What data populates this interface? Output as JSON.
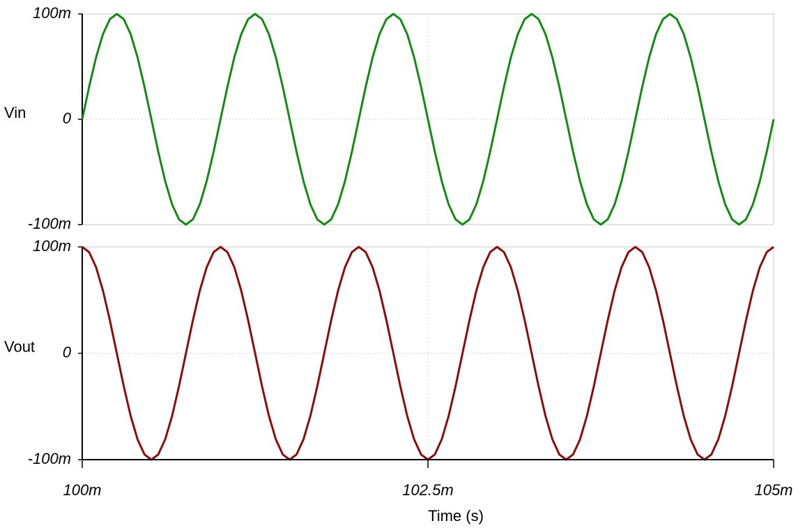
{
  "chart_data": {
    "type": "line",
    "xlabel": "Time (s)",
    "grid": true,
    "xlim": [
      0.1,
      0.105
    ],
    "xticks": [
      {
        "value": 0.1,
        "label": "100m"
      },
      {
        "value": 0.1025,
        "label": "102.5m"
      },
      {
        "value": 0.105,
        "label": "105m"
      }
    ],
    "x": [
      0.1,
      0.10005,
      0.1001,
      0.10015,
      0.1002,
      0.10025,
      0.1003,
      0.10035,
      0.1004,
      0.10045,
      0.1005,
      0.10055,
      0.1006,
      0.10065,
      0.1007,
      0.10075,
      0.1008,
      0.10085,
      0.1009,
      0.10095,
      0.101,
      0.10105,
      0.1011,
      0.10115,
      0.1012,
      0.10125,
      0.1013,
      0.10135,
      0.1014,
      0.10145,
      0.1015,
      0.10155,
      0.1016,
      0.10165,
      0.1017,
      0.10175,
      0.1018,
      0.10185,
      0.1019,
      0.10195,
      0.102,
      0.10205,
      0.1021,
      0.10215,
      0.1022,
      0.10225,
      0.1023,
      0.10235,
      0.1024,
      0.10245,
      0.1025,
      0.10255,
      0.1026,
      0.10265,
      0.1027,
      0.10275,
      0.1028,
      0.10285,
      0.1029,
      0.10295,
      0.103,
      0.10305,
      0.1031,
      0.10315,
      0.1032,
      0.10325,
      0.1033,
      0.10335,
      0.1034,
      0.10345,
      0.1035,
      0.10355,
      0.1036,
      0.10365,
      0.1037,
      0.10375,
      0.1038,
      0.10385,
      0.1039,
      0.10395,
      0.104,
      0.10405,
      0.1041,
      0.10415,
      0.1042,
      0.10425,
      0.1043,
      0.10435,
      0.1044,
      0.10445,
      0.1045,
      0.10455,
      0.1046,
      0.10465,
      0.1047,
      0.10475,
      0.1048,
      0.10485,
      0.1049,
      0.10495,
      0.105
    ],
    "panels": [
      {
        "ylabel": "Vin",
        "ylim": [
          -0.1,
          0.1
        ],
        "yticks": [
          {
            "value": 0.1,
            "label": "100m"
          },
          0,
          {
            "value": -0.1,
            "label": "-100m"
          }
        ],
        "series": [
          {
            "color": "#138a13",
            "values": [
              0,
              0.0309,
              0.0588,
              0.0809,
              0.0951,
              0.1,
              0.0951,
              0.0809,
              0.0588,
              0.0309,
              0,
              -0.0309,
              -0.0588,
              -0.0809,
              -0.0951,
              -0.1,
              -0.0951,
              -0.0809,
              -0.0588,
              -0.0309,
              0,
              0.0309,
              0.0588,
              0.0809,
              0.0951,
              0.1,
              0.0951,
              0.0809,
              0.0588,
              0.0309,
              0,
              -0.0309,
              -0.0588,
              -0.0809,
              -0.0951,
              -0.1,
              -0.0951,
              -0.0809,
              -0.0588,
              -0.0309,
              0,
              0.0309,
              0.0588,
              0.0809,
              0.0951,
              0.1,
              0.0951,
              0.0809,
              0.0588,
              0.0309,
              0,
              -0.0309,
              -0.0588,
              -0.0809,
              -0.0951,
              -0.1,
              -0.0951,
              -0.0809,
              -0.0588,
              -0.0309,
              0,
              0.0309,
              0.0588,
              0.0809,
              0.0951,
              0.1,
              0.0951,
              0.0809,
              0.0588,
              0.0309,
              0,
              -0.0309,
              -0.0588,
              -0.0809,
              -0.0951,
              -0.1,
              -0.0951,
              -0.0809,
              -0.0588,
              -0.0309,
              0,
              0.0309,
              0.0588,
              0.0809,
              0.0951,
              0.1,
              0.0951,
              0.0809,
              0.0588,
              0.0309,
              0,
              -0.0309,
              -0.0588,
              -0.0809,
              -0.0951,
              -0.1,
              -0.0951,
              -0.0809,
              -0.0588,
              -0.0309,
              0
            ]
          }
        ]
      },
      {
        "ylabel": "Vout",
        "ylim": [
          -0.1,
          0.1
        ],
        "yticks": [
          {
            "value": 0.1,
            "label": "100m"
          },
          0,
          {
            "value": -0.1,
            "label": "-100m"
          }
        ],
        "series": [
          {
            "color": "#8b0c0c",
            "values": [
              0.1,
              0.0951,
              0.0809,
              0.0588,
              0.0309,
              0,
              -0.0309,
              -0.0588,
              -0.0809,
              -0.0951,
              -0.1,
              -0.0951,
              -0.0809,
              -0.0588,
              -0.0309,
              0,
              0.0309,
              0.0588,
              0.0809,
              0.0951,
              0.1,
              0.0951,
              0.0809,
              0.0588,
              0.0309,
              0,
              -0.0309,
              -0.0588,
              -0.0809,
              -0.0951,
              -0.1,
              -0.0951,
              -0.0809,
              -0.0588,
              -0.0309,
              0,
              0.0309,
              0.0588,
              0.0809,
              0.0951,
              0.1,
              0.0951,
              0.0809,
              0.0588,
              0.0309,
              0,
              -0.0309,
              -0.0588,
              -0.0809,
              -0.0951,
              -0.1,
              -0.0951,
              -0.0809,
              -0.0588,
              -0.0309,
              0,
              0.0309,
              0.0588,
              0.0809,
              0.0951,
              0.1,
              0.0951,
              0.0809,
              0.0588,
              0.0309,
              0,
              -0.0309,
              -0.0588,
              -0.0809,
              -0.0951,
              -0.1,
              -0.0951,
              -0.0809,
              -0.0588,
              -0.0309,
              0,
              0.0309,
              0.0588,
              0.0809,
              0.0951,
              0.1,
              0.0951,
              0.0809,
              0.0588,
              0.0309,
              0,
              -0.0309,
              -0.0588,
              -0.0809,
              -0.0951,
              -0.1,
              -0.0951,
              -0.0809,
              -0.0588,
              -0.0309,
              0,
              0.0309,
              0.0588,
              0.0809,
              0.0951,
              0.1
            ]
          }
        ]
      }
    ]
  }
}
